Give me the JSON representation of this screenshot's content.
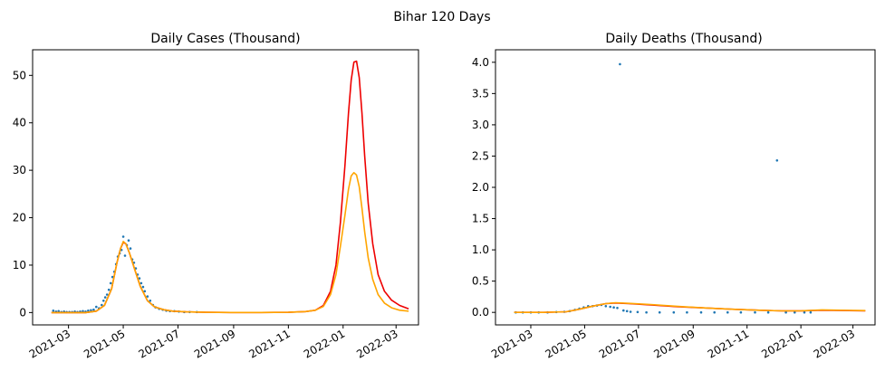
{
  "figure": {
    "suptitle": "Bihar 120 Days"
  },
  "colors": {
    "observed": "#1f77b4",
    "model_red": "#ee0000",
    "model_orange": "#ffa500",
    "axes": "#000000"
  },
  "chart_data": [
    {
      "type": "line",
      "title": "Daily Cases (Thousand)",
      "xlabel": "",
      "ylabel": "",
      "xaxis": "date",
      "xlim": [
        "2021-01-20",
        "2022-03-26"
      ],
      "ylim": [
        -2.6,
        55.4
      ],
      "grid": false,
      "legend": "none",
      "xticks": [
        "2021-03-01",
        "2021-05-01",
        "2021-07-01",
        "2021-09-01",
        "2021-11-01",
        "2022-01-01",
        "2022-03-01"
      ],
      "xtick_labels": [
        "2021-03",
        "2021-05",
        "2021-07",
        "2021-09",
        "2021-11",
        "2022-01",
        "2022-03"
      ],
      "yticks": [
        0,
        10,
        20,
        30,
        40,
        50
      ],
      "ytick_labels": [
        "0",
        "10",
        "20",
        "30",
        "40",
        "50"
      ],
      "series": [
        {
          "style": "line",
          "color": "#ee0000",
          "x": [
            "2021-02-10",
            "2021-03-01",
            "2021-03-20",
            "2021-04-01",
            "2021-04-10",
            "2021-04-18",
            "2021-04-24",
            "2021-04-28",
            "2021-05-01",
            "2021-05-04",
            "2021-05-08",
            "2021-05-14",
            "2021-05-20",
            "2021-05-28",
            "2021-06-05",
            "2021-06-15",
            "2021-06-25",
            "2021-07-10",
            "2021-08-01",
            "2021-09-01",
            "2021-10-01",
            "2021-11-01",
            "2021-11-20",
            "2021-12-01",
            "2021-12-10",
            "2021-12-18",
            "2021-12-24",
            "2021-12-29",
            "2022-01-03",
            "2022-01-07",
            "2022-01-10",
            "2022-01-13",
            "2022-01-16",
            "2022-01-19",
            "2022-01-22",
            "2022-01-25",
            "2022-01-29",
            "2022-02-03",
            "2022-02-09",
            "2022-02-16",
            "2022-02-24",
            "2022-03-05",
            "2022-03-15"
          ],
          "values": [
            0,
            0,
            0,
            0.3,
            1.5,
            5,
            10.5,
            13.5,
            14.8,
            14.5,
            12.5,
            9,
            5.5,
            2.5,
            1.2,
            0.6,
            0.3,
            0.15,
            0.05,
            0.02,
            0.02,
            0.05,
            0.2,
            0.5,
            1.5,
            4.5,
            10,
            19,
            31,
            42,
            49,
            52.8,
            53,
            49.5,
            42,
            33,
            23,
            14.5,
            8,
            4.5,
            2.6,
            1.5,
            0.8
          ]
        },
        {
          "style": "line",
          "color": "#ffa500",
          "x": [
            "2021-02-10",
            "2021-03-01",
            "2021-03-20",
            "2021-04-01",
            "2021-04-10",
            "2021-04-18",
            "2021-04-24",
            "2021-04-28",
            "2021-05-01",
            "2021-05-04",
            "2021-05-08",
            "2021-05-14",
            "2021-05-20",
            "2021-05-28",
            "2021-06-05",
            "2021-06-15",
            "2021-06-25",
            "2021-07-10",
            "2021-08-01",
            "2021-09-01",
            "2021-10-01",
            "2021-11-01",
            "2021-11-20",
            "2021-12-01",
            "2021-12-10",
            "2021-12-18",
            "2021-12-24",
            "2021-12-29",
            "2022-01-03",
            "2022-01-07",
            "2022-01-10",
            "2022-01-13",
            "2022-01-16",
            "2022-01-19",
            "2022-01-22",
            "2022-01-25",
            "2022-01-29",
            "2022-02-03",
            "2022-02-09",
            "2022-02-16",
            "2022-02-24",
            "2022-03-05",
            "2022-03-15"
          ],
          "values": [
            0,
            0,
            0,
            0.3,
            1.5,
            5,
            10.5,
            13.5,
            15,
            14.5,
            12.5,
            9,
            5.5,
            2.5,
            1.2,
            0.6,
            0.3,
            0.15,
            0.05,
            0.02,
            0.02,
            0.05,
            0.2,
            0.5,
            1.3,
            3.8,
            8,
            14,
            20.5,
            26,
            28.8,
            29.5,
            29,
            26.5,
            22,
            17,
            11.5,
            7,
            3.8,
            2,
            1,
            0.5,
            0.3
          ]
        },
        {
          "style": "scatter",
          "color": "#1f77b4",
          "x": [
            "2021-02-12",
            "2021-02-15",
            "2021-02-18",
            "2021-02-21",
            "2021-02-24",
            "2021-02-27",
            "2021-03-02",
            "2021-03-05",
            "2021-03-08",
            "2021-03-11",
            "2021-03-14",
            "2021-03-17",
            "2021-03-20",
            "2021-03-23",
            "2021-03-26",
            "2021-03-29",
            "2021-04-01",
            "2021-04-04",
            "2021-04-07",
            "2021-04-09",
            "2021-04-11",
            "2021-04-13",
            "2021-04-15",
            "2021-04-17",
            "2021-04-19",
            "2021-04-21",
            "2021-04-23",
            "2021-04-25",
            "2021-04-27",
            "2021-04-29",
            "2021-05-01",
            "2021-05-03",
            "2021-05-05",
            "2021-05-07",
            "2021-05-09",
            "2021-05-11",
            "2021-05-13",
            "2021-05-15",
            "2021-05-17",
            "2021-05-19",
            "2021-05-21",
            "2021-05-23",
            "2021-05-25",
            "2021-05-28",
            "2021-05-31",
            "2021-06-03",
            "2021-06-06",
            "2021-06-10",
            "2021-06-14",
            "2021-06-18",
            "2021-06-22",
            "2021-06-27",
            "2021-07-02",
            "2021-07-08",
            "2021-07-14",
            "2021-07-22"
          ],
          "values": [
            0.4,
            0.2,
            0.3,
            0.1,
            0.2,
            0.1,
            0.1,
            0.1,
            0.2,
            0.1,
            0.2,
            0.3,
            0.2,
            0.4,
            0.5,
            0.6,
            1.2,
            0.9,
            1.6,
            2.5,
            3.2,
            3.8,
            4.8,
            6.2,
            7.5,
            8.6,
            10.2,
            11.8,
            12.5,
            13.2,
            16,
            12,
            14.2,
            15.2,
            13.5,
            11.2,
            10.5,
            9.3,
            8,
            7.2,
            6.2,
            5.4,
            4.5,
            3.4,
            2.5,
            1.6,
            1.1,
            0.8,
            0.6,
            0.4,
            0.3,
            0.3,
            0.2,
            0.1,
            0.1,
            0.1
          ]
        }
      ]
    },
    {
      "type": "line",
      "title": "Daily Deaths (Thousand)",
      "xlabel": "",
      "ylabel": "",
      "xaxis": "date",
      "xlim": [
        "2021-01-20",
        "2022-03-26"
      ],
      "ylim": [
        -0.2,
        4.2
      ],
      "grid": false,
      "legend": "none",
      "xticks": [
        "2021-03-01",
        "2021-05-01",
        "2021-07-01",
        "2021-09-01",
        "2021-11-01",
        "2022-01-01",
        "2022-03-01"
      ],
      "xtick_labels": [
        "2021-03",
        "2021-05",
        "2021-07",
        "2021-09",
        "2021-11",
        "2022-01",
        "2022-03"
      ],
      "yticks": [
        0,
        0.5,
        1,
        1.5,
        2,
        2.5,
        3,
        3.5,
        4
      ],
      "ytick_labels": [
        "0.0",
        "0.5",
        "1.0",
        "1.5",
        "2.0",
        "2.5",
        "3.0",
        "3.5",
        "4.0"
      ],
      "series": [
        {
          "style": "line",
          "color": "#ee0000",
          "x": [
            "2021-02-10",
            "2021-03-15",
            "2021-04-10",
            "2021-04-25",
            "2021-05-10",
            "2021-05-25",
            "2021-06-05",
            "2021-06-20",
            "2021-07-15",
            "2021-08-15",
            "2021-09-15",
            "2021-10-15",
            "2021-11-15",
            "2021-12-10",
            "2022-01-01",
            "2022-01-25",
            "2022-02-15",
            "2022-03-15"
          ],
          "values": [
            0,
            0,
            0.01,
            0.05,
            0.1,
            0.14,
            0.15,
            0.14,
            0.12,
            0.09,
            0.07,
            0.05,
            0.035,
            0.025,
            0.025,
            0.035,
            0.03,
            0.025
          ]
        },
        {
          "style": "line",
          "color": "#ffa500",
          "x": [
            "2021-02-10",
            "2021-03-15",
            "2021-04-10",
            "2021-04-25",
            "2021-05-10",
            "2021-05-25",
            "2021-06-05",
            "2021-06-20",
            "2021-07-15",
            "2021-08-15",
            "2021-09-15",
            "2021-10-15",
            "2021-11-15",
            "2021-12-10",
            "2022-01-01",
            "2022-01-25",
            "2022-02-15",
            "2022-03-15"
          ],
          "values": [
            0,
            0,
            0.01,
            0.05,
            0.1,
            0.14,
            0.155,
            0.145,
            0.125,
            0.095,
            0.07,
            0.05,
            0.035,
            0.025,
            0.025,
            0.04,
            0.035,
            0.028
          ]
        },
        {
          "style": "scatter",
          "color": "#1f77b4",
          "x": [
            "2021-02-12",
            "2021-02-20",
            "2021-03-01",
            "2021-03-10",
            "2021-03-20",
            "2021-03-30",
            "2021-04-08",
            "2021-04-14",
            "2021-04-20",
            "2021-04-25",
            "2021-04-30",
            "2021-05-05",
            "2021-05-10",
            "2021-05-15",
            "2021-05-20",
            "2021-05-25",
            "2021-05-30",
            "2021-06-03",
            "2021-06-07",
            "2021-06-10",
            "2021-06-14",
            "2021-06-18",
            "2021-06-22",
            "2021-06-30",
            "2021-07-10",
            "2021-07-25",
            "2021-08-10",
            "2021-08-25",
            "2021-09-10",
            "2021-09-25",
            "2021-10-10",
            "2021-10-25",
            "2021-11-10",
            "2021-11-25",
            "2021-12-05",
            "2021-12-15",
            "2021-12-25",
            "2022-01-05",
            "2022-01-12"
          ],
          "values": [
            0,
            0,
            0,
            0,
            0,
            0.005,
            0.01,
            0.02,
            0.04,
            0.06,
            0.08,
            0.1,
            0.1,
            0.11,
            0.12,
            0.1,
            0.09,
            0.08,
            0.07,
            3.97,
            0.03,
            0.02,
            0.01,
            0.005,
            0,
            0,
            0,
            0,
            0,
            0,
            0,
            0,
            0,
            0,
            2.43,
            0,
            0,
            0,
            0
          ]
        }
      ]
    }
  ]
}
